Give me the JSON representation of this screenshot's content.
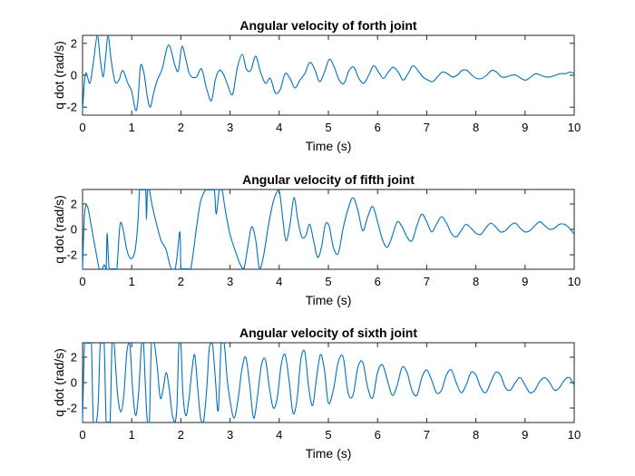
{
  "colors": {
    "line": "#0072BD",
    "axis": "#262626",
    "background": "#ffffff"
  },
  "chart_data": [
    {
      "type": "line",
      "title": "Angular velocity of forth joint",
      "xlabel": "Time (s)",
      "ylabel": "q dot (rad/s)",
      "xlim": [
        0,
        10
      ],
      "ylim": [
        -2.5,
        2.5
      ],
      "xticks": [
        0,
        1,
        2,
        3,
        4,
        5,
        6,
        7,
        8,
        9,
        10
      ],
      "yticks": [
        -2,
        0,
        2
      ],
      "grid": false,
      "series": [
        {
          "x": [
            0,
            0.06,
            0.15,
            0.22,
            0.3,
            0.36,
            0.42,
            0.47,
            0.52,
            0.58,
            0.66,
            0.74,
            0.82,
            0.92,
            1.0,
            1.08,
            1.13,
            1.18,
            1.25,
            1.32,
            1.38,
            1.44,
            1.52,
            1.62,
            1.75,
            1.88,
            1.95,
            2.02,
            2.1,
            2.16,
            2.22,
            2.32,
            2.42,
            2.52,
            2.62,
            2.7,
            2.78,
            2.86,
            2.94,
            3.05,
            3.15,
            3.25,
            3.33,
            3.42,
            3.52,
            3.62,
            3.72,
            3.82,
            3.92,
            4.02,
            4.12,
            4.22,
            4.32,
            4.42,
            4.52,
            4.62,
            4.72,
            4.82,
            4.92,
            5.02,
            5.12,
            5.22,
            5.32,
            5.42,
            5.52,
            5.62,
            5.72,
            5.82,
            5.92,
            6.02,
            6.12,
            6.22,
            6.32,
            6.42,
            6.52,
            6.62,
            6.72,
            6.82,
            6.92,
            7.02,
            7.12,
            7.22,
            7.32,
            7.42,
            7.52,
            7.62,
            7.72,
            7.82,
            7.92,
            8.02,
            8.12,
            8.22,
            8.32,
            8.42,
            8.52,
            8.62,
            8.72,
            8.82,
            8.92,
            9.02,
            9.12,
            9.22,
            9.32,
            9.42,
            9.52,
            9.62,
            9.72,
            9.82,
            9.92,
            10.0
          ],
          "y": [
            -2.2,
            0.1,
            -0.5,
            0.8,
            2.6,
            1.0,
            -0.1,
            1.2,
            2.5,
            1.0,
            -0.4,
            -0.3,
            0.3,
            -0.5,
            -1.0,
            -2.2,
            -1.5,
            0.6,
            0.1,
            -1.4,
            -2.0,
            -1.2,
            -0.3,
            0.4,
            1.9,
            0.6,
            0.3,
            1.8,
            1.0,
            0.2,
            -0.1,
            -0.1,
            0.4,
            -0.8,
            -1.6,
            -0.3,
            0.3,
            0.1,
            -0.5,
            -1.2,
            0.5,
            1.3,
            0.4,
            0.3,
            1.2,
            0.2,
            -0.5,
            -0.2,
            -1.1,
            -0.9,
            0.1,
            -0.2,
            -0.8,
            -0.3,
            0.1,
            0.8,
            0.4,
            -0.4,
            0.2,
            1.0,
            0.5,
            -0.3,
            -0.5,
            0.3,
            0.5,
            -0.2,
            -0.5,
            0.0,
            0.6,
            0.2,
            -0.2,
            0.2,
            0.5,
            0.2,
            -0.3,
            0.1,
            0.6,
            0.3,
            -0.1,
            -0.3,
            -0.4,
            -0.1,
            0.2,
            0.1,
            -0.1,
            0.0,
            0.3,
            0.3,
            0.0,
            -0.2,
            -0.2,
            0.0,
            0.3,
            0.2,
            -0.1,
            -0.1,
            0.0,
            0.0,
            -0.2,
            -0.3,
            -0.1,
            0.1,
            0.0,
            -0.1,
            -0.1,
            0.0,
            0.1,
            0.1,
            0.2,
            0.1
          ]
        }
      ]
    },
    {
      "type": "line",
      "title": "Angular velocity of fifth joint",
      "xlabel": "Time (s)",
      "ylabel": "q dot (rad/s)",
      "xlim": [
        0,
        10
      ],
      "ylim": [
        -3.14,
        3.14
      ],
      "xticks": [
        0,
        1,
        2,
        3,
        4,
        5,
        6,
        7,
        8,
        9,
        10
      ],
      "yticks": [
        -2,
        0,
        2
      ],
      "grid": false,
      "series": [
        {
          "x": [
            0,
            0.04,
            0.1,
            0.18,
            0.26,
            0.34,
            0.4,
            0.44,
            0.48,
            0.5,
            0.54,
            0.6,
            0.66,
            0.7,
            0.76,
            0.82,
            0.9,
            0.98,
            1.06,
            1.12,
            1.16,
            1.2,
            1.28,
            1.3,
            1.32,
            1.34,
            1.36,
            1.42,
            1.5,
            1.6,
            1.7,
            1.8,
            1.88,
            1.92,
            1.98,
            2.0,
            2.02,
            2.08,
            2.14,
            2.2,
            2.26,
            2.32,
            2.4,
            2.5,
            2.56,
            2.62,
            2.68,
            2.72,
            2.78,
            2.84,
            2.9,
            3.0,
            3.1,
            3.2,
            3.28,
            3.36,
            3.44,
            3.52,
            3.6,
            3.68,
            3.78,
            3.88,
            3.98,
            4.02,
            4.08,
            4.14,
            4.22,
            4.3,
            4.38,
            4.46,
            4.54,
            4.62,
            4.7,
            4.78,
            4.86,
            4.94,
            5.02,
            5.1,
            5.2,
            5.3,
            5.4,
            5.5,
            5.6,
            5.7,
            5.8,
            5.9,
            6.0,
            6.1,
            6.2,
            6.3,
            6.4,
            6.5,
            6.6,
            6.7,
            6.8,
            6.9,
            7.0,
            7.1,
            7.2,
            7.3,
            7.4,
            7.5,
            7.6,
            7.7,
            7.8,
            7.9,
            8.0,
            8.1,
            8.2,
            8.3,
            8.4,
            8.5,
            8.6,
            8.7,
            8.8,
            8.9,
            9.0,
            9.1,
            9.2,
            9.3,
            9.4,
            9.5,
            9.6,
            9.7,
            9.8,
            9.9,
            10.0
          ],
          "y": [
            -3.1,
            1.2,
            1.8,
            0.2,
            -1.5,
            -3.1,
            -3.1,
            -2.8,
            -3.1,
            -0.3,
            -3.1,
            -3.1,
            -3.1,
            -3.1,
            0.3,
            0.1,
            -1.6,
            -2.3,
            -1.8,
            0.2,
            3.1,
            3.1,
            3.1,
            0.8,
            3.1,
            3.1,
            3.1,
            1.8,
            0.5,
            -0.9,
            -1.6,
            -3.1,
            -3.1,
            -2.2,
            -0.2,
            -3.1,
            -3.1,
            -3.1,
            -3.1,
            -3.1,
            -1.6,
            0.2,
            2.2,
            3.1,
            3.1,
            3.1,
            3.1,
            1.2,
            3.1,
            3.1,
            1.6,
            -0.4,
            -1.6,
            -2.7,
            -3.1,
            -1.4,
            0.2,
            -0.8,
            -3.1,
            -2.1,
            0.3,
            2.2,
            3.1,
            2.6,
            0.6,
            -0.9,
            0.4,
            2.5,
            0.7,
            -0.6,
            -0.5,
            0.4,
            -0.9,
            -2.2,
            -1.4,
            0.4,
            0.2,
            -1.4,
            -1.9,
            0.1,
            1.6,
            2.5,
            1.5,
            -0.1,
            1.0,
            1.8,
            0.6,
            -0.8,
            -1.4,
            -0.5,
            0.6,
            0.2,
            -0.6,
            -0.9,
            0.3,
            1.2,
            0.6,
            -0.2,
            0.4,
            1.0,
            0.5,
            -0.3,
            -0.6,
            -0.1,
            0.4,
            0.1,
            -0.3,
            -0.4,
            0.1,
            0.5,
            0.2,
            -0.2,
            -0.1,
            0.3,
            0.5,
            0.1,
            -0.2,
            -0.1,
            0.3,
            0.6,
            0.3,
            0.0,
            0.1,
            0.4,
            0.4,
            0.1,
            -0.4
          ]
        }
      ]
    },
    {
      "type": "line",
      "title": "Angular velocity of sixth joint",
      "xlabel": "Time (s)",
      "ylabel": "q dot (rad/s)",
      "xlim": [
        0,
        10
      ],
      "ylim": [
        -3.14,
        3.14
      ],
      "xticks": [
        0,
        1,
        2,
        3,
        4,
        5,
        6,
        7,
        8,
        9,
        10
      ],
      "yticks": [
        -2,
        0,
        2
      ],
      "grid": false,
      "series": [
        {
          "x": [
            0,
            0.04,
            0.08,
            0.14,
            0.18,
            0.22,
            0.28,
            0.32,
            0.36,
            0.4,
            0.44,
            0.48,
            0.52,
            0.56,
            0.6,
            0.64,
            0.68,
            0.72,
            0.78,
            0.84,
            0.9,
            0.96,
            1.02,
            1.08,
            1.14,
            1.2,
            1.24,
            1.28,
            1.32,
            1.36,
            1.4,
            1.46,
            1.52,
            1.58,
            1.64,
            1.7,
            1.76,
            1.82,
            1.88,
            1.92,
            1.96,
            2.0,
            2.04,
            2.1,
            2.16,
            2.22,
            2.28,
            2.34,
            2.4,
            2.46,
            2.52,
            2.58,
            2.64,
            2.7,
            2.76,
            2.82,
            2.88,
            2.94,
            3.0,
            3.08,
            3.16,
            3.24,
            3.32,
            3.4,
            3.48,
            3.56,
            3.64,
            3.72,
            3.8,
            3.88,
            3.96,
            4.04,
            4.12,
            4.2,
            4.28,
            4.36,
            4.44,
            4.52,
            4.6,
            4.68,
            4.76,
            4.84,
            4.92,
            5.0,
            5.1,
            5.2,
            5.3,
            5.4,
            5.5,
            5.6,
            5.7,
            5.8,
            5.9,
            6.0,
            6.1,
            6.2,
            6.3,
            6.4,
            6.5,
            6.6,
            6.7,
            6.8,
            6.9,
            7.0,
            7.1,
            7.2,
            7.3,
            7.4,
            7.5,
            7.6,
            7.7,
            7.8,
            7.9,
            8.0,
            8.1,
            8.2,
            8.3,
            8.4,
            8.5,
            8.6,
            8.7,
            8.8,
            8.9,
            9.0,
            9.1,
            9.2,
            9.3,
            9.4,
            9.5,
            9.6,
            9.7,
            9.8,
            9.9,
            10.0
          ],
          "y": [
            -3.1,
            3.1,
            3.1,
            3.1,
            3.1,
            -3.1,
            -3.1,
            -1.5,
            3.1,
            3.1,
            3.1,
            -3.1,
            -3.1,
            -3.1,
            3.1,
            3.1,
            0.8,
            -1.2,
            -2.3,
            -1.0,
            2.4,
            3.1,
            -0.6,
            -2.6,
            -0.8,
            3.1,
            3.1,
            -0.5,
            -3.1,
            -3.1,
            3.1,
            3.1,
            1.2,
            -1.2,
            -0.5,
            0.8,
            -0.4,
            -2.4,
            -3.1,
            -1.8,
            3.1,
            3.1,
            -0.8,
            -2.6,
            -1.4,
            0.8,
            2.2,
            -0.3,
            -2.8,
            -3.1,
            -0.8,
            2.8,
            3.1,
            0.4,
            -2.2,
            3.1,
            3.1,
            0.4,
            -1.4,
            -2.8,
            -1.4,
            1.0,
            2.0,
            -0.2,
            -2.8,
            -1.0,
            1.4,
            1.8,
            -0.4,
            -2.0,
            -1.2,
            1.4,
            2.2,
            0.2,
            -2.4,
            -1.4,
            1.8,
            2.4,
            -0.4,
            -1.8,
            0.4,
            2.2,
            1.0,
            -1.6,
            -0.6,
            1.6,
            2.0,
            -0.8,
            -1.0,
            1.2,
            1.6,
            -0.4,
            -1.2,
            0.8,
            1.4,
            0.2,
            -1.0,
            -0.2,
            1.2,
            0.8,
            -0.6,
            -1.0,
            0.4,
            1.0,
            0.2,
            -0.8,
            -0.6,
            0.6,
            1.0,
            0.0,
            -0.8,
            -0.2,
            0.8,
            0.6,
            -0.4,
            -0.8,
            0.0,
            0.8,
            0.6,
            -0.4,
            -0.6,
            0.0,
            0.4,
            -0.2,
            -0.8,
            -0.6,
            0.1,
            0.4,
            0.0,
            -0.6,
            -0.4,
            0.2,
            0.4,
            -0.2
          ]
        }
      ]
    }
  ]
}
